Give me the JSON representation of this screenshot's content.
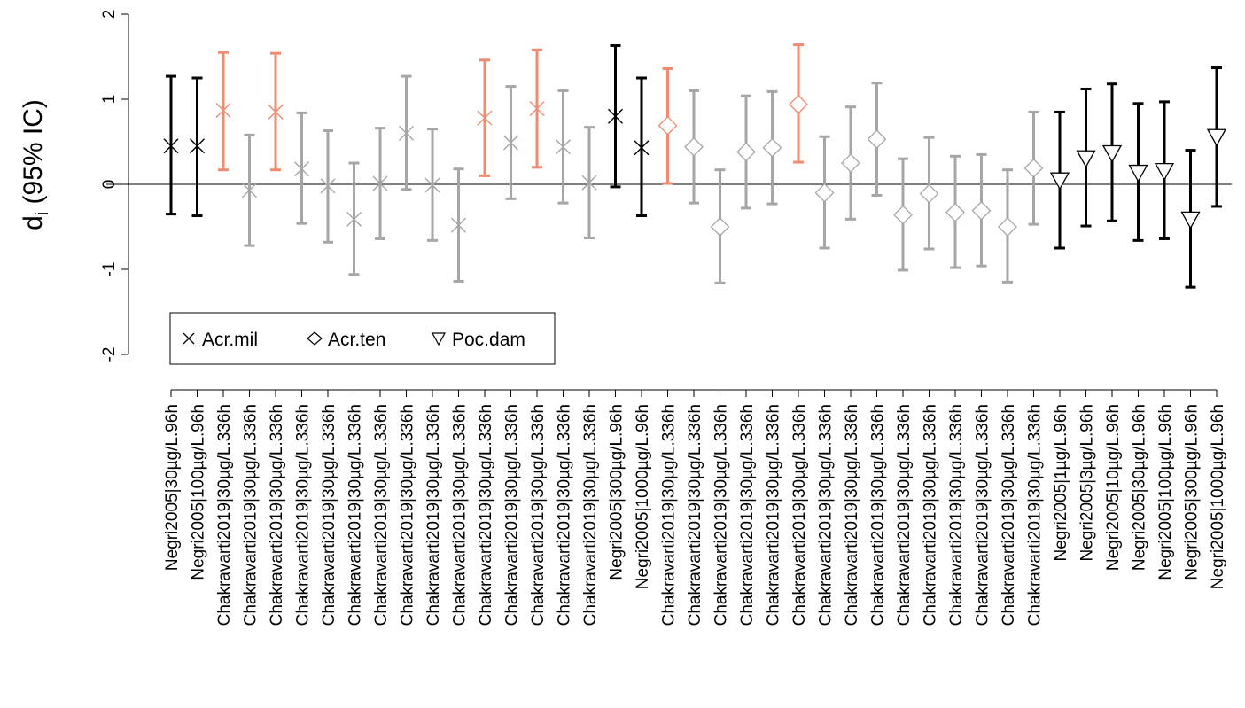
{
  "chart_data": {
    "type": "errorbar",
    "title": "",
    "xlabel": "",
    "ylabel": "d",
    "ylabel_sub": "i",
    "ylabel_rest": " (95% IC)",
    "ylim": [
      -2,
      2
    ],
    "yticks": [
      -2,
      -1,
      0,
      1,
      2
    ],
    "grid": false,
    "reference_line": 0,
    "colors": {
      "black": "#000000",
      "gray": "#a6a6a6",
      "salmon": "#f08a70"
    },
    "legend": {
      "placement": "bottom-left",
      "entries": [
        {
          "label": "Acr.mil",
          "marker": "x"
        },
        {
          "label": "Acr.ten",
          "marker": "diamond"
        },
        {
          "label": "Poc.dam",
          "marker": "triangle-down"
        }
      ]
    },
    "points": [
      {
        "label": "Negri2005|30µg/L.96h",
        "est": 0.45,
        "lo": -0.35,
        "hi": 1.27,
        "marker": "x",
        "color": "black"
      },
      {
        "label": "Negri2005|100µg/L.96h",
        "est": 0.45,
        "lo": -0.37,
        "hi": 1.25,
        "marker": "x",
        "color": "black"
      },
      {
        "label": "Chakravarti2019|30µg/L.336h",
        "est": 0.87,
        "lo": 0.17,
        "hi": 1.55,
        "marker": "x",
        "color": "salmon"
      },
      {
        "label": "Chakravarti2019|30µg/L.336h",
        "est": -0.07,
        "lo": -0.72,
        "hi": 0.58,
        "marker": "x",
        "color": "gray"
      },
      {
        "label": "Chakravarti2019|30µg/L.336h",
        "est": 0.85,
        "lo": 0.17,
        "hi": 1.54,
        "marker": "x",
        "color": "salmon"
      },
      {
        "label": "Chakravarti2019|30µg/L.336h",
        "est": 0.18,
        "lo": -0.46,
        "hi": 0.84,
        "marker": "x",
        "color": "gray"
      },
      {
        "label": "Chakravarti2019|30µg/L.336h",
        "est": -0.02,
        "lo": -0.68,
        "hi": 0.63,
        "marker": "x",
        "color": "gray"
      },
      {
        "label": "Chakravarti2019|30µg/L.336h",
        "est": -0.41,
        "lo": -1.06,
        "hi": 0.25,
        "marker": "x",
        "color": "gray"
      },
      {
        "label": "Chakravarti2019|30µg/L.336h",
        "est": 0.01,
        "lo": -0.64,
        "hi": 0.66,
        "marker": "x",
        "color": "gray"
      },
      {
        "label": "Chakravarti2019|30µg/L.336h",
        "est": 0.6,
        "lo": -0.06,
        "hi": 1.27,
        "marker": "x",
        "color": "gray"
      },
      {
        "label": "Chakravarti2019|30µg/L.336h",
        "est": -0.01,
        "lo": -0.66,
        "hi": 0.65,
        "marker": "x",
        "color": "gray"
      },
      {
        "label": "Chakravarti2019|30µg/L.336h",
        "est": -0.48,
        "lo": -1.14,
        "hi": 0.18,
        "marker": "x",
        "color": "gray"
      },
      {
        "label": "Chakravarti2019|30µg/L.336h",
        "est": 0.78,
        "lo": 0.1,
        "hi": 1.46,
        "marker": "x",
        "color": "salmon"
      },
      {
        "label": "Chakravarti2019|30µg/L.336h",
        "est": 0.49,
        "lo": -0.17,
        "hi": 1.15,
        "marker": "x",
        "color": "gray"
      },
      {
        "label": "Chakravarti2019|30µg/L.336h",
        "est": 0.89,
        "lo": 0.2,
        "hi": 1.58,
        "marker": "x",
        "color": "salmon"
      },
      {
        "label": "Chakravarti2019|30µg/L.336h",
        "est": 0.44,
        "lo": -0.22,
        "hi": 1.1,
        "marker": "x",
        "color": "gray"
      },
      {
        "label": "Chakravarti2019|30µg/L.336h",
        "est": 0.02,
        "lo": -0.63,
        "hi": 0.67,
        "marker": "x",
        "color": "gray"
      },
      {
        "label": "Negri2005|300µg/L.96h",
        "est": 0.8,
        "lo": -0.03,
        "hi": 1.63,
        "marker": "x",
        "color": "black"
      },
      {
        "label": "Negri2005|1000µg/L.96h",
        "est": 0.43,
        "lo": -0.37,
        "hi": 1.25,
        "marker": "x",
        "color": "black"
      },
      {
        "label": "Chakravarti2019|30µg/L.336h",
        "est": 0.69,
        "lo": 0.01,
        "hi": 1.36,
        "marker": "diamond",
        "color": "salmon"
      },
      {
        "label": "Chakravarti2019|30µg/L.336h",
        "est": 0.44,
        "lo": -0.22,
        "hi": 1.1,
        "marker": "diamond",
        "color": "gray"
      },
      {
        "label": "Chakravarti2019|30µg/L.336h",
        "est": -0.5,
        "lo": -1.16,
        "hi": 0.17,
        "marker": "diamond",
        "color": "gray"
      },
      {
        "label": "Chakravarti2019|30µg/L.336h",
        "est": 0.38,
        "lo": -0.28,
        "hi": 1.04,
        "marker": "diamond",
        "color": "gray"
      },
      {
        "label": "Chakravarti2019|30µg/L.336h",
        "est": 0.43,
        "lo": -0.23,
        "hi": 1.09,
        "marker": "diamond",
        "color": "gray"
      },
      {
        "label": "Chakravarti2019|30µg/L.336h",
        "est": 0.94,
        "lo": 0.26,
        "hi": 1.64,
        "marker": "diamond",
        "color": "salmon"
      },
      {
        "label": "Chakravarti2019|30µg/L.336h",
        "est": -0.1,
        "lo": -0.75,
        "hi": 0.56,
        "marker": "diamond",
        "color": "gray"
      },
      {
        "label": "Chakravarti2019|30µg/L.336h",
        "est": 0.25,
        "lo": -0.41,
        "hi": 0.91,
        "marker": "diamond",
        "color": "gray"
      },
      {
        "label": "Chakravarti2019|30µg/L.336h",
        "est": 0.53,
        "lo": -0.13,
        "hi": 1.19,
        "marker": "diamond",
        "color": "gray"
      },
      {
        "label": "Chakravarti2019|30µg/L.336h",
        "est": -0.36,
        "lo": -1.01,
        "hi": 0.3,
        "marker": "diamond",
        "color": "gray"
      },
      {
        "label": "Chakravarti2019|30µg/L.336h",
        "est": -0.11,
        "lo": -0.76,
        "hi": 0.55,
        "marker": "diamond",
        "color": "gray"
      },
      {
        "label": "Chakravarti2019|30µg/L.336h",
        "est": -0.33,
        "lo": -0.98,
        "hi": 0.33,
        "marker": "diamond",
        "color": "gray"
      },
      {
        "label": "Chakravarti2019|30µg/L.336h",
        "est": -0.31,
        "lo": -0.96,
        "hi": 0.35,
        "marker": "diamond",
        "color": "gray"
      },
      {
        "label": "Chakravarti2019|30µg/L.336h",
        "est": -0.5,
        "lo": -1.15,
        "hi": 0.17,
        "marker": "diamond",
        "color": "gray"
      },
      {
        "label": "Chakravarti2019|30µg/L.336h",
        "est": 0.19,
        "lo": -0.47,
        "hi": 0.85,
        "marker": "diamond",
        "color": "gray"
      },
      {
        "label": "Negri2005|1µg/L.96h",
        "est": 0.05,
        "lo": -0.75,
        "hi": 0.85,
        "marker": "triangle-down",
        "color": "black"
      },
      {
        "label": "Negri2005|3µg/L.96h",
        "est": 0.31,
        "lo": -0.49,
        "hi": 1.12,
        "marker": "triangle-down",
        "color": "black"
      },
      {
        "label": "Negri2005|10µg/L.96h",
        "est": 0.37,
        "lo": -0.43,
        "hi": 1.18,
        "marker": "triangle-down",
        "color": "black"
      },
      {
        "label": "Negri2005|30µg/L.96h",
        "est": 0.14,
        "lo": -0.66,
        "hi": 0.95,
        "marker": "triangle-down",
        "color": "black"
      },
      {
        "label": "Negri2005|100µg/L.96h",
        "est": 0.16,
        "lo": -0.64,
        "hi": 0.97,
        "marker": "triangle-down",
        "color": "black"
      },
      {
        "label": "Negri2005|300µg/L.96h",
        "est": -0.41,
        "lo": -1.21,
        "hi": 0.4,
        "marker": "triangle-down",
        "color": "black"
      },
      {
        "label": "Negri2005|1000µg/L.96h",
        "est": 0.56,
        "lo": -0.26,
        "hi": 1.37,
        "marker": "triangle-down",
        "color": "black"
      }
    ]
  }
}
